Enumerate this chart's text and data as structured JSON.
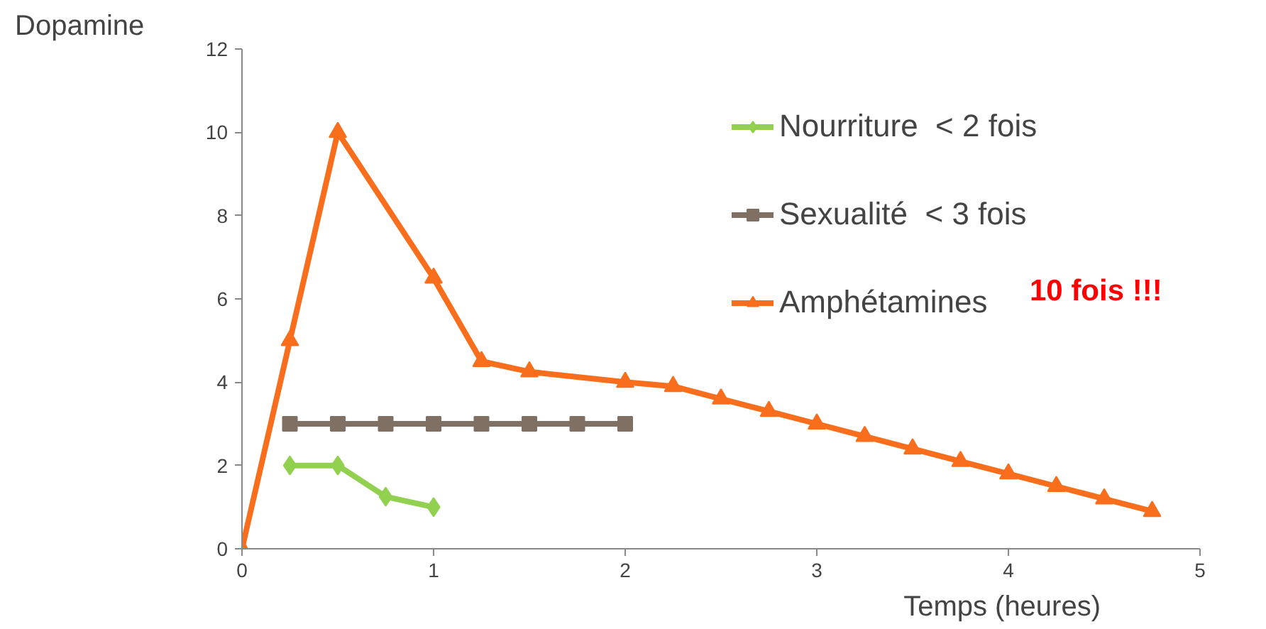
{
  "chart_data": {
    "type": "line",
    "xlabel": "Temps (heures)",
    "ylabel": "Dopamine",
    "xlim": [
      0,
      5
    ],
    "ylim": [
      0,
      12
    ],
    "xticks": [
      0,
      1,
      2,
      3,
      4,
      5
    ],
    "yticks": [
      0,
      2,
      4,
      6,
      8,
      10,
      12
    ],
    "grid": false,
    "legend": "top right",
    "annotations": [
      "10 fois !!!"
    ],
    "series": [
      {
        "name": "Nourriture  < 2 fois",
        "color": "#92d050",
        "marker": "diamond",
        "x": [
          0.25,
          0.5,
          0.75,
          1
        ],
        "values": [
          2,
          2,
          1.25,
          1
        ]
      },
      {
        "name": "Sexualité  < 3 fois",
        "color": "#7f7063",
        "marker": "square",
        "x": [
          0.25,
          0.5,
          0.75,
          1,
          1.25,
          1.5,
          1.75,
          2
        ],
        "values": [
          3,
          3,
          3,
          3,
          3,
          3,
          3,
          3
        ]
      },
      {
        "name": "Amphétamines",
        "color": "#f96e1c",
        "marker": "triangle",
        "x": [
          0,
          0.25,
          0.5,
          1,
          1.25,
          1.5,
          2,
          2.25,
          2.5,
          2.75,
          3,
          3.25,
          3.5,
          3.75,
          4,
          4.25,
          4.5,
          4.75
        ],
        "values": [
          0,
          5,
          10,
          6.5,
          4.5,
          4.25,
          4.0,
          3.9,
          3.6,
          3.3,
          3.0,
          2.7,
          2.4,
          2.1,
          1.8,
          1.5,
          1.2,
          0.9
        ]
      }
    ]
  }
}
